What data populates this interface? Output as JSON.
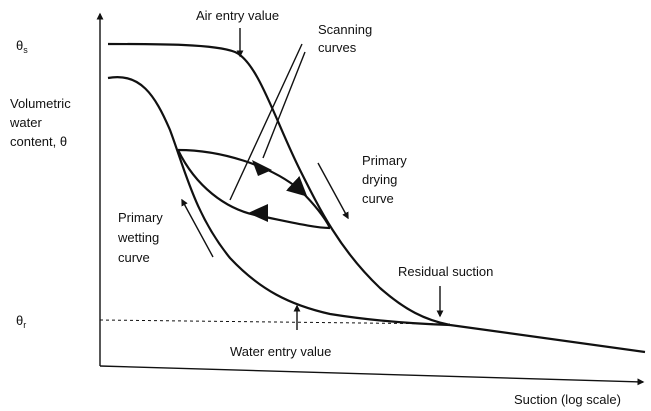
{
  "labels": {
    "air_entry": "Air entry value",
    "theta_s": {
      "symbol": "θ",
      "subscript": "s"
    },
    "scanning": [
      "Scanning",
      "curves"
    ],
    "y_axis": [
      "Volumetric",
      "water",
      "content, θ"
    ],
    "drying": [
      "Primary",
      "drying",
      "curve"
    ],
    "wetting": [
      "Primary",
      "wetting",
      "curve"
    ],
    "residual": "Residual suction",
    "theta_r": {
      "symbol": "θ",
      "subscript": "r"
    },
    "water_entry": "Water entry value",
    "x_axis": "Suction (log scale)"
  }
}
